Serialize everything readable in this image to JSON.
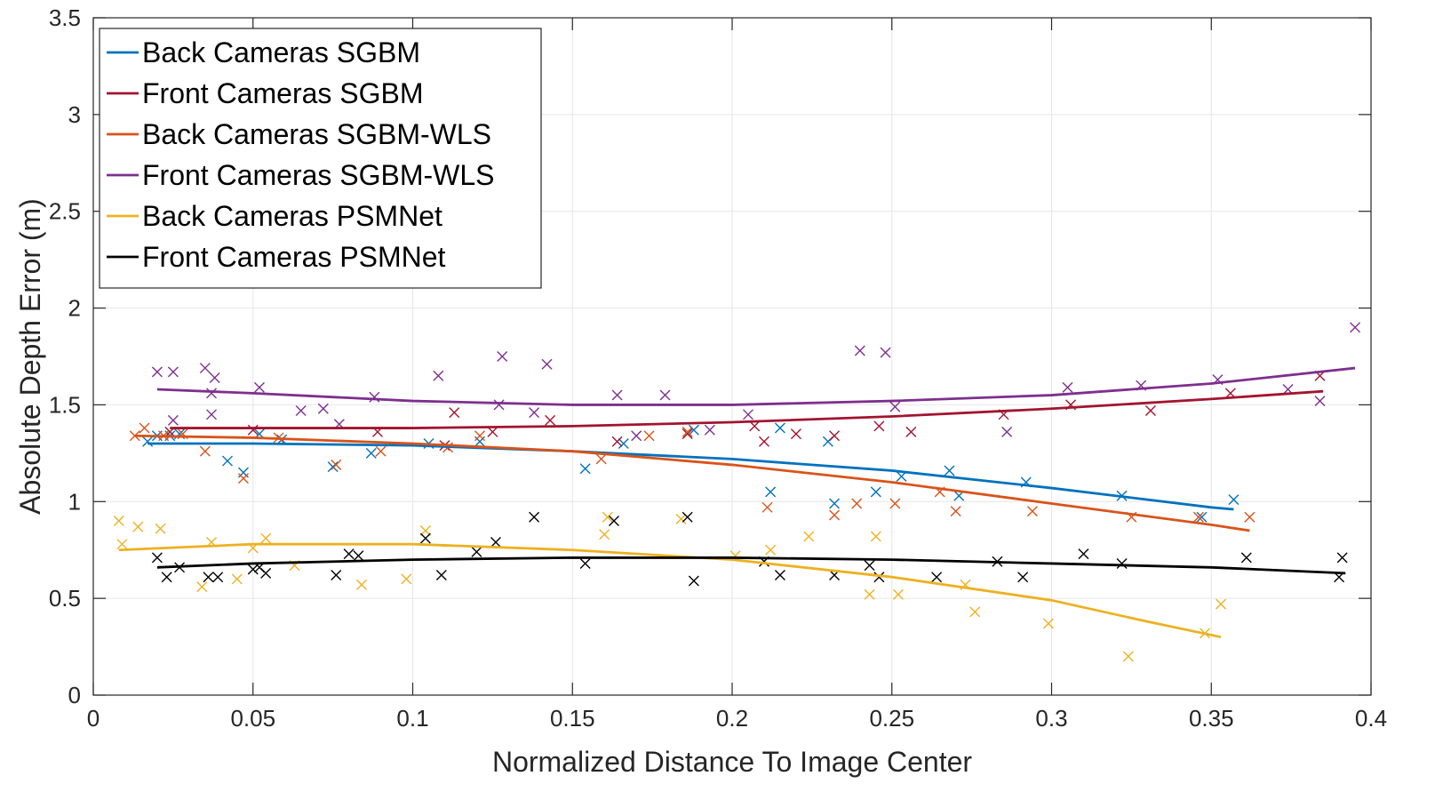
{
  "chart_data": {
    "type": "scatter",
    "xlabel": "Normalized Distance To Image Center",
    "ylabel": "Absolute Depth Error (m)",
    "xlim": [
      0,
      0.4
    ],
    "ylim": [
      0,
      3.5
    ],
    "xticks": [
      "0",
      "0.05",
      "0.1",
      "0.15",
      "0.2",
      "0.25",
      "0.3",
      "0.35",
      "0.4"
    ],
    "yticks": [
      "0",
      "0.5",
      "1",
      "1.5",
      "2",
      "2.5",
      "3",
      "3.5"
    ],
    "grid": true,
    "legend_position": "top-left",
    "series": [
      {
        "name": "Back Cameras SGBM",
        "color": "#0072BD",
        "fit": [
          [
            0.017,
            1.3
          ],
          [
            0.05,
            1.3
          ],
          [
            0.1,
            1.29
          ],
          [
            0.15,
            1.26
          ],
          [
            0.2,
            1.22
          ],
          [
            0.25,
            1.16
          ],
          [
            0.3,
            1.07
          ],
          [
            0.35,
            0.97
          ],
          [
            0.357,
            0.96
          ]
        ],
        "points": [
          [
            0.017,
            1.31
          ],
          [
            0.02,
            1.34
          ],
          [
            0.024,
            1.34
          ],
          [
            0.027,
            1.35
          ],
          [
            0.042,
            1.21
          ],
          [
            0.047,
            1.15
          ],
          [
            0.052,
            1.35
          ],
          [
            0.059,
            1.32
          ],
          [
            0.075,
            1.18
          ],
          [
            0.087,
            1.25
          ],
          [
            0.105,
            1.3
          ],
          [
            0.121,
            1.31
          ],
          [
            0.154,
            1.17
          ],
          [
            0.166,
            1.3
          ],
          [
            0.188,
            1.37
          ],
          [
            0.212,
            1.05
          ],
          [
            0.215,
            1.38
          ],
          [
            0.23,
            1.31
          ],
          [
            0.232,
            0.99
          ],
          [
            0.245,
            1.05
          ],
          [
            0.253,
            1.13
          ],
          [
            0.268,
            1.16
          ],
          [
            0.271,
            1.03
          ],
          [
            0.292,
            1.1
          ],
          [
            0.322,
            1.03
          ],
          [
            0.347,
            0.92
          ],
          [
            0.357,
            1.01
          ]
        ]
      },
      {
        "name": "Front Cameras SGBM",
        "color": "#A2142F",
        "fit": [
          [
            0.024,
            1.38
          ],
          [
            0.05,
            1.38
          ],
          [
            0.1,
            1.38
          ],
          [
            0.15,
            1.39
          ],
          [
            0.2,
            1.41
          ],
          [
            0.25,
            1.44
          ],
          [
            0.3,
            1.48
          ],
          [
            0.35,
            1.53
          ],
          [
            0.385,
            1.57
          ]
        ],
        "points": [
          [
            0.024,
            1.36
          ],
          [
            0.05,
            1.37
          ],
          [
            0.089,
            1.36
          ],
          [
            0.11,
            1.29
          ],
          [
            0.113,
            1.46
          ],
          [
            0.125,
            1.36
          ],
          [
            0.143,
            1.42
          ],
          [
            0.164,
            1.31
          ],
          [
            0.186,
            1.35
          ],
          [
            0.207,
            1.39
          ],
          [
            0.21,
            1.31
          ],
          [
            0.22,
            1.35
          ],
          [
            0.232,
            1.34
          ],
          [
            0.246,
            1.39
          ],
          [
            0.256,
            1.36
          ],
          [
            0.285,
            1.45
          ],
          [
            0.306,
            1.5
          ],
          [
            0.331,
            1.47
          ],
          [
            0.356,
            1.56
          ],
          [
            0.384,
            1.65
          ]
        ]
      },
      {
        "name": "Back Cameras SGBM-WLS",
        "color": "#D95319",
        "fit": [
          [
            0.013,
            1.34
          ],
          [
            0.05,
            1.33
          ],
          [
            0.1,
            1.3
          ],
          [
            0.15,
            1.26
          ],
          [
            0.2,
            1.19
          ],
          [
            0.25,
            1.1
          ],
          [
            0.3,
            0.99
          ],
          [
            0.35,
            0.88
          ],
          [
            0.362,
            0.85
          ]
        ],
        "points": [
          [
            0.013,
            1.34
          ],
          [
            0.016,
            1.38
          ],
          [
            0.022,
            1.34
          ],
          [
            0.028,
            1.35
          ],
          [
            0.035,
            1.26
          ],
          [
            0.047,
            1.12
          ],
          [
            0.058,
            1.33
          ],
          [
            0.076,
            1.19
          ],
          [
            0.09,
            1.26
          ],
          [
            0.111,
            1.28
          ],
          [
            0.121,
            1.34
          ],
          [
            0.159,
            1.22
          ],
          [
            0.174,
            1.34
          ],
          [
            0.186,
            1.36
          ],
          [
            0.211,
            0.97
          ],
          [
            0.232,
            0.93
          ],
          [
            0.239,
            0.99
          ],
          [
            0.251,
            0.99
          ],
          [
            0.265,
            1.05
          ],
          [
            0.27,
            0.95
          ],
          [
            0.294,
            0.95
          ],
          [
            0.325,
            0.92
          ],
          [
            0.346,
            0.92
          ],
          [
            0.362,
            0.92
          ]
        ]
      },
      {
        "name": "Front Cameras SGBM-WLS",
        "color": "#7E2F8E",
        "fit": [
          [
            0.02,
            1.58
          ],
          [
            0.05,
            1.56
          ],
          [
            0.1,
            1.52
          ],
          [
            0.15,
            1.5
          ],
          [
            0.2,
            1.5
          ],
          [
            0.25,
            1.52
          ],
          [
            0.3,
            1.55
          ],
          [
            0.35,
            1.61
          ],
          [
            0.395,
            1.69
          ]
        ],
        "points": [
          [
            0.02,
            1.67
          ],
          [
            0.025,
            1.67
          ],
          [
            0.025,
            1.42
          ],
          [
            0.035,
            1.69
          ],
          [
            0.037,
            1.56
          ],
          [
            0.038,
            1.64
          ],
          [
            0.037,
            1.45
          ],
          [
            0.052,
            1.59
          ],
          [
            0.065,
            1.47
          ],
          [
            0.072,
            1.48
          ],
          [
            0.077,
            1.4
          ],
          [
            0.088,
            1.54
          ],
          [
            0.108,
            1.65
          ],
          [
            0.128,
            1.75
          ],
          [
            0.127,
            1.5
          ],
          [
            0.138,
            1.46
          ],
          [
            0.142,
            1.71
          ],
          [
            0.164,
            1.55
          ],
          [
            0.17,
            1.34
          ],
          [
            0.179,
            1.55
          ],
          [
            0.193,
            1.37
          ],
          [
            0.205,
            1.45
          ],
          [
            0.24,
            1.78
          ],
          [
            0.248,
            1.77
          ],
          [
            0.251,
            1.49
          ],
          [
            0.286,
            1.36
          ],
          [
            0.305,
            1.59
          ],
          [
            0.328,
            1.6
          ],
          [
            0.352,
            1.63
          ],
          [
            0.374,
            1.58
          ],
          [
            0.384,
            1.52
          ],
          [
            0.395,
            1.9
          ]
        ]
      },
      {
        "name": "Back Cameras PSMNet",
        "color": "#EDB120",
        "fit": [
          [
            0.008,
            0.75
          ],
          [
            0.05,
            0.78
          ],
          [
            0.1,
            0.78
          ],
          [
            0.15,
            0.75
          ],
          [
            0.2,
            0.7
          ],
          [
            0.25,
            0.61
          ],
          [
            0.3,
            0.49
          ],
          [
            0.33,
            0.38
          ],
          [
            0.353,
            0.3
          ]
        ],
        "points": [
          [
            0.008,
            0.9
          ],
          [
            0.009,
            0.78
          ],
          [
            0.014,
            0.87
          ],
          [
            0.021,
            0.86
          ],
          [
            0.034,
            0.56
          ],
          [
            0.037,
            0.79
          ],
          [
            0.045,
            0.6
          ],
          [
            0.05,
            0.76
          ],
          [
            0.054,
            0.81
          ],
          [
            0.063,
            0.67
          ],
          [
            0.084,
            0.57
          ],
          [
            0.098,
            0.6
          ],
          [
            0.104,
            0.85
          ],
          [
            0.16,
            0.83
          ],
          [
            0.161,
            0.92
          ],
          [
            0.184,
            0.91
          ],
          [
            0.201,
            0.72
          ],
          [
            0.212,
            0.75
          ],
          [
            0.224,
            0.82
          ],
          [
            0.243,
            0.52
          ],
          [
            0.245,
            0.82
          ],
          [
            0.252,
            0.52
          ],
          [
            0.273,
            0.57
          ],
          [
            0.276,
            0.43
          ],
          [
            0.299,
            0.37
          ],
          [
            0.324,
            0.2
          ],
          [
            0.348,
            0.32
          ],
          [
            0.353,
            0.47
          ]
        ]
      },
      {
        "name": "Front Cameras PSMNet",
        "color": "#000000",
        "fit": [
          [
            0.02,
            0.66
          ],
          [
            0.05,
            0.68
          ],
          [
            0.1,
            0.7
          ],
          [
            0.15,
            0.71
          ],
          [
            0.2,
            0.71
          ],
          [
            0.25,
            0.7
          ],
          [
            0.3,
            0.68
          ],
          [
            0.35,
            0.66
          ],
          [
            0.392,
            0.63
          ]
        ],
        "points": [
          [
            0.02,
            0.71
          ],
          [
            0.023,
            0.61
          ],
          [
            0.027,
            0.66
          ],
          [
            0.036,
            0.61
          ],
          [
            0.039,
            0.61
          ],
          [
            0.05,
            0.65
          ],
          [
            0.052,
            0.66
          ],
          [
            0.054,
            0.63
          ],
          [
            0.076,
            0.62
          ],
          [
            0.08,
            0.73
          ],
          [
            0.083,
            0.72
          ],
          [
            0.104,
            0.81
          ],
          [
            0.109,
            0.62
          ],
          [
            0.12,
            0.74
          ],
          [
            0.126,
            0.79
          ],
          [
            0.138,
            0.92
          ],
          [
            0.154,
            0.68
          ],
          [
            0.163,
            0.9
          ],
          [
            0.186,
            0.92
          ],
          [
            0.188,
            0.59
          ],
          [
            0.21,
            0.69
          ],
          [
            0.215,
            0.62
          ],
          [
            0.232,
            0.62
          ],
          [
            0.243,
            0.67
          ],
          [
            0.246,
            0.61
          ],
          [
            0.264,
            0.61
          ],
          [
            0.283,
            0.69
          ],
          [
            0.291,
            0.61
          ],
          [
            0.31,
            0.73
          ],
          [
            0.322,
            0.68
          ],
          [
            0.361,
            0.71
          ],
          [
            0.39,
            0.61
          ],
          [
            0.391,
            0.71
          ]
        ]
      }
    ]
  }
}
